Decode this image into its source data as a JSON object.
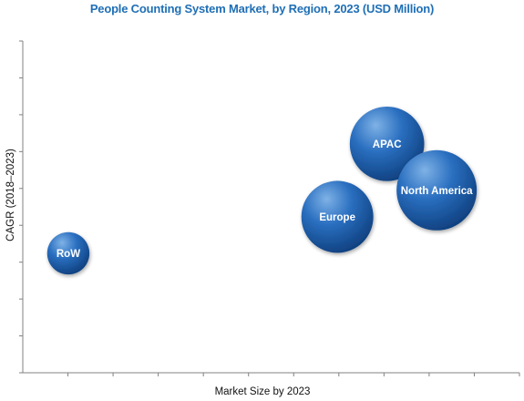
{
  "colors": {
    "title": "#1f6fb5",
    "axis": "#808080",
    "bubble_light": "#7fb2e6",
    "bubble_mid": "#2a6fc0",
    "bubble_dark": "#0e3e7c"
  },
  "chart_data": {
    "type": "bubble",
    "title": "People Counting System Market, by Region, 2023 (USD Million)",
    "xlabel": "Market Size by 2023",
    "ylabel": "CAGR (2018–2023)",
    "ylim": [
      0,
      10
    ],
    "xlim": [
      0,
      12
    ],
    "grid": false,
    "points": [
      {
        "label": "RoW",
        "x": 1.1,
        "y": 3.6,
        "size": 1.0
      },
      {
        "label": "Europe",
        "x": 7.6,
        "y": 4.7,
        "size": 2.9
      },
      {
        "label": "APAC",
        "x": 8.8,
        "y": 6.9,
        "size": 3.1
      },
      {
        "label": "North America",
        "x": 10.0,
        "y": 5.5,
        "size": 3.6
      }
    ]
  }
}
